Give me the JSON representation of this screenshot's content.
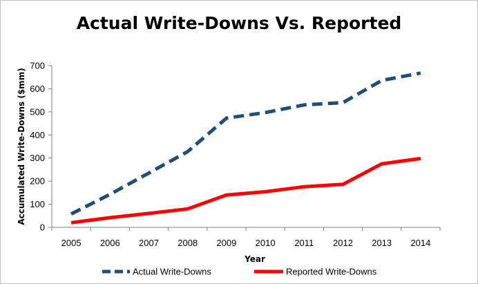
{
  "chart_data": {
    "type": "line",
    "title": "Actual Write-Downs Vs. Reported",
    "xlabel": "Year",
    "ylabel": "Accumulated Write-Downs ($mm)",
    "categories": [
      "2005",
      "2006",
      "2007",
      "2008",
      "2009",
      "2010",
      "2011",
      "2012",
      "2013",
      "2014"
    ],
    "ylim": [
      0,
      700
    ],
    "yticks": [
      0,
      100,
      200,
      300,
      400,
      500,
      600,
      700
    ],
    "grid": false,
    "legend_position": "bottom",
    "series": [
      {
        "name": "Actual Write-Downs",
        "color": "#1f4e79",
        "style": "dashed",
        "values": [
          58,
          143,
          235,
          328,
          473,
          497,
          530,
          540,
          636,
          668
        ]
      },
      {
        "name": "Reported Write-Downs",
        "color": "#ff0000",
        "style": "solid",
        "values": [
          20,
          42,
          60,
          80,
          140,
          154,
          176,
          186,
          275,
          298
        ]
      }
    ]
  }
}
